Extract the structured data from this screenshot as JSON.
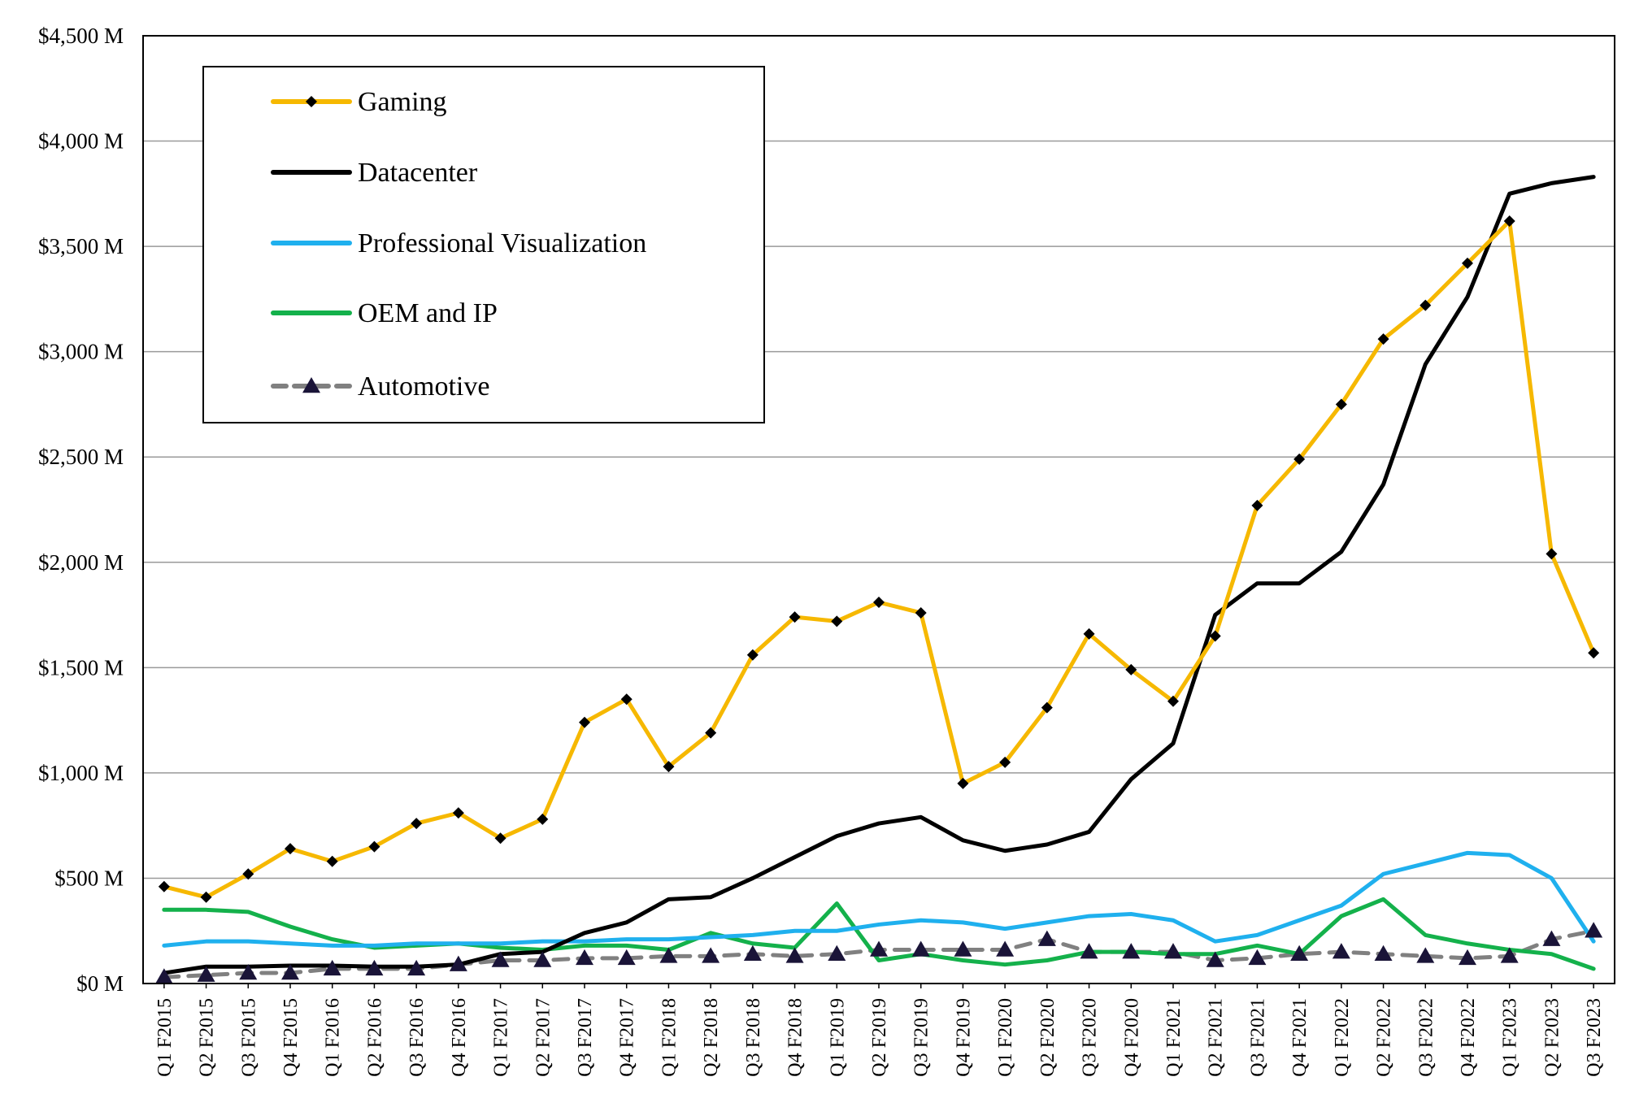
{
  "chart_data": {
    "type": "line",
    "title": "",
    "xlabel": "",
    "ylabel": "",
    "ylim": [
      0,
      4500
    ],
    "y_ticks": [
      0,
      500,
      1000,
      1500,
      2000,
      2500,
      3000,
      3500,
      4000,
      4500
    ],
    "y_tick_labels": [
      "$0 M",
      "$500 M",
      "$1,000 M",
      "$1,500 M",
      "$2,000 M",
      "$2,500 M",
      "$3,000 M",
      "$3,500 M",
      "$4,000 M",
      "$4,500 M"
    ],
    "grid": true,
    "legend_position": "top-left",
    "categories": [
      "Q1 F2015",
      "Q2 F2015",
      "Q3 F2015",
      "Q4 F2015",
      "Q1 F2016",
      "Q2 F2016",
      "Q3 F2016",
      "Q4 F2016",
      "Q1 F2017",
      "Q2 F2017",
      "Q3 F2017",
      "Q4 F2017",
      "Q1 F2018",
      "Q2 F2018",
      "Q3 F2018",
      "Q4 F2018",
      "Q1 F2019",
      "Q2 F2019",
      "Q3 F2019",
      "Q4 F2019",
      "Q1 F2020",
      "Q2 F2020",
      "Q3 F2020",
      "Q4 F2020",
      "Q1 F2021",
      "Q2 F2021",
      "Q3 F2021",
      "Q4 F2021",
      "Q1 F2022",
      "Q2 F2022",
      "Q3 F2022",
      "Q4 F2022",
      "Q1 F2023",
      "Q2 F2023",
      "Q3 F2023"
    ],
    "series": [
      {
        "name": "Gaming",
        "color": "#F6B800",
        "marker": "diamond",
        "dashed": false,
        "values": [
          460,
          410,
          520,
          640,
          580,
          650,
          760,
          810,
          690,
          780,
          1240,
          1350,
          1030,
          1190,
          1560,
          1740,
          1720,
          1810,
          1760,
          950,
          1050,
          1310,
          1660,
          1490,
          1340,
          1650,
          2270,
          2490,
          2750,
          3060,
          3220,
          3420,
          3620,
          2040,
          1570
        ]
      },
      {
        "name": "Datacenter",
        "color": "#000000",
        "marker": "none",
        "dashed": false,
        "values": [
          50,
          80,
          80,
          85,
          85,
          80,
          80,
          90,
          140,
          150,
          240,
          290,
          400,
          410,
          500,
          600,
          700,
          760,
          790,
          680,
          630,
          660,
          720,
          970,
          1140,
          1750,
          1900,
          1900,
          2050,
          2370,
          2940,
          3260,
          3750,
          3800,
          3830
        ]
      },
      {
        "name": "Professional Visualization",
        "color": "#1FB0EE",
        "marker": "none",
        "dashed": false,
        "values": [
          180,
          200,
          200,
          190,
          180,
          180,
          190,
          190,
          190,
          200,
          200,
          210,
          210,
          220,
          230,
          250,
          250,
          280,
          300,
          290,
          260,
          290,
          320,
          330,
          300,
          200,
          230,
          300,
          370,
          520,
          570,
          620,
          610,
          500,
          200
        ]
      },
      {
        "name": "OEM and IP",
        "color": "#14B14B",
        "marker": "none",
        "dashed": false,
        "values": [
          350,
          350,
          340,
          270,
          210,
          170,
          180,
          190,
          170,
          160,
          180,
          180,
          160,
          240,
          190,
          170,
          380,
          110,
          140,
          110,
          90,
          110,
          150,
          150,
          140,
          140,
          180,
          140,
          320,
          400,
          230,
          190,
          160,
          140,
          70
        ]
      },
      {
        "name": "Automotive",
        "color": "#808080",
        "marker": "triangle",
        "dashed": true,
        "values": [
          30,
          40,
          50,
          50,
          70,
          70,
          70,
          90,
          110,
          110,
          120,
          120,
          130,
          130,
          140,
          130,
          140,
          160,
          160,
          160,
          160,
          210,
          150,
          150,
          150,
          110,
          120,
          140,
          150,
          140,
          130,
          120,
          130,
          210,
          250
        ]
      }
    ]
  }
}
